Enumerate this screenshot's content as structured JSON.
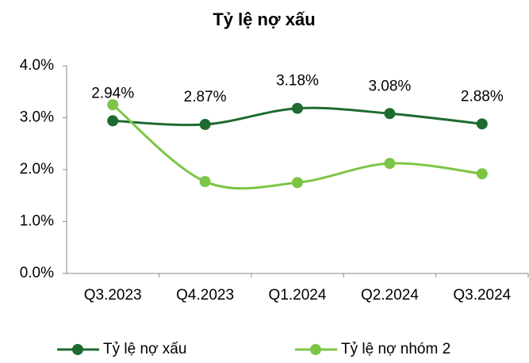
{
  "chart_data": {
    "type": "line",
    "title": "Tỷ lệ nợ xấu",
    "categories": [
      "Q3.2023",
      "Q4.2023",
      "Q1.2024",
      "Q2.2024",
      "Q3.2024"
    ],
    "series": [
      {
        "name": "Tỷ lệ nợ xấu",
        "color": "#1e6b30",
        "values": [
          2.94,
          2.87,
          3.18,
          3.08,
          2.88
        ],
        "value_labels": [
          "2.94%",
          "2.87%",
          "3.18%",
          "3.08%",
          "2.88%"
        ]
      },
      {
        "name": "Tỷ lệ nợ nhóm 2",
        "color": "#7dc545",
        "values": [
          3.25,
          1.77,
          1.75,
          2.12,
          1.92
        ]
      }
    ],
    "ylim": [
      0,
      4
    ],
    "yticks": [
      {
        "value": 0,
        "label": "0.0%"
      },
      {
        "value": 1,
        "label": "1.0%"
      },
      {
        "value": 2,
        "label": "2.0%"
      },
      {
        "value": 3,
        "label": "3.0%"
      },
      {
        "value": 4,
        "label": "4.0%"
      }
    ],
    "legend": "bottom",
    "grid": false
  }
}
